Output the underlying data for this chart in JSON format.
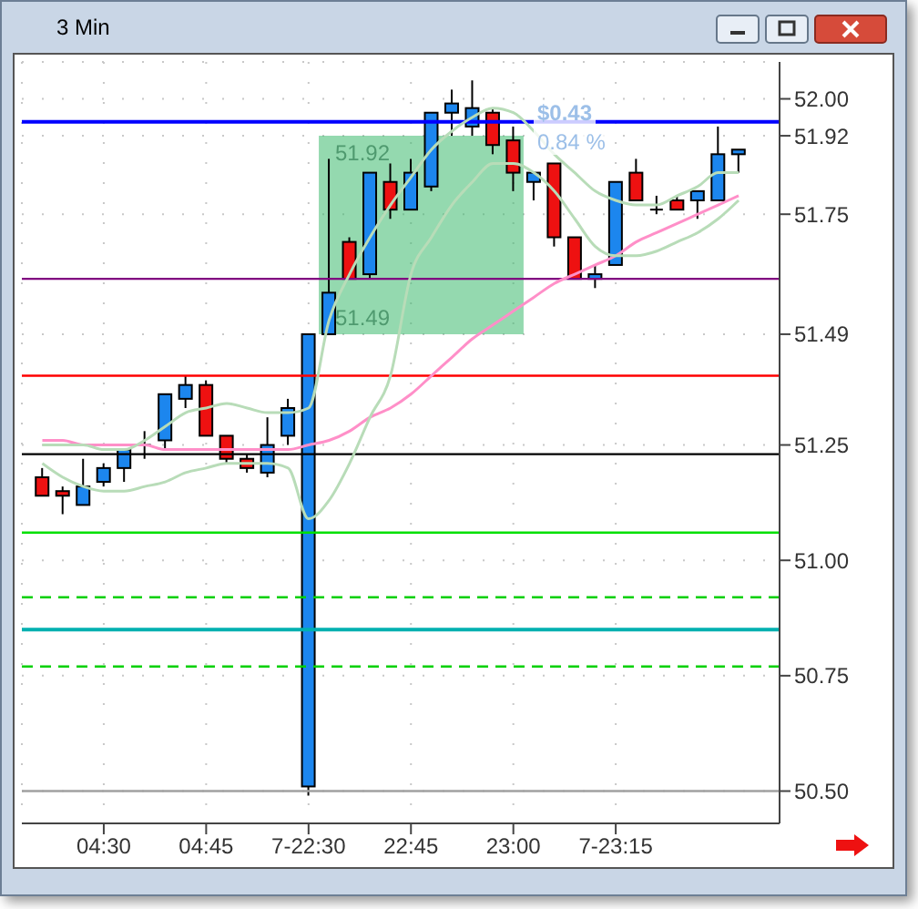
{
  "chart_data": {
    "type": "candlestick",
    "title": "3 Min",
    "categories": [
      null,
      null,
      null,
      "04:30",
      null,
      null,
      null,
      null,
      "04:45",
      null,
      null,
      null,
      null,
      "7-22:30",
      null,
      null,
      null,
      null,
      "22:45",
      null,
      null,
      null,
      null,
      "23:00",
      null,
      null,
      null,
      null,
      "7-23:15",
      null,
      null,
      null,
      null,
      null,
      null
    ],
    "ohlc": [
      [
        51.18,
        51.2,
        51.14,
        51.14
      ],
      [
        51.15,
        51.16,
        51.1,
        51.14
      ],
      [
        51.12,
        51.22,
        51.12,
        51.16
      ],
      [
        51.17,
        51.21,
        51.16,
        51.2
      ],
      [
        51.2,
        51.24,
        51.17,
        51.24
      ],
      [
        51.25,
        51.28,
        51.22,
        51.25
      ],
      [
        51.26,
        51.36,
        51.24,
        51.36
      ],
      [
        51.35,
        51.4,
        51.33,
        51.38
      ],
      [
        51.38,
        51.39,
        51.27,
        51.27
      ],
      [
        51.27,
        51.27,
        51.21,
        51.22
      ],
      [
        51.22,
        51.23,
        51.19,
        51.2
      ],
      [
        51.19,
        51.31,
        51.18,
        51.25
      ],
      [
        51.27,
        51.35,
        51.25,
        51.33
      ],
      [
        50.51,
        51.49,
        50.49,
        51.49
      ],
      [
        51.49,
        51.87,
        51.49,
        51.58
      ],
      [
        51.69,
        51.7,
        51.61,
        51.61
      ],
      [
        51.62,
        51.84,
        51.61,
        51.84
      ],
      [
        51.82,
        51.86,
        51.74,
        51.76
      ],
      [
        51.76,
        51.87,
        51.76,
        51.84
      ],
      [
        51.81,
        51.97,
        51.8,
        51.97
      ],
      [
        51.97,
        52.02,
        51.92,
        51.99
      ],
      [
        51.94,
        52.04,
        51.92,
        51.98
      ],
      [
        51.97,
        51.98,
        51.88,
        51.9
      ],
      [
        51.91,
        51.94,
        51.8,
        51.84
      ],
      [
        51.82,
        51.84,
        51.78,
        51.84
      ],
      [
        51.86,
        51.86,
        51.68,
        51.7
      ],
      [
        51.7,
        51.7,
        51.61,
        51.61
      ],
      [
        51.61,
        51.64,
        51.59,
        51.62
      ],
      [
        51.64,
        51.82,
        51.64,
        51.82
      ],
      [
        51.84,
        51.87,
        51.78,
        51.78
      ],
      [
        51.76,
        51.79,
        51.75,
        51.76
      ],
      [
        51.78,
        51.79,
        51.76,
        51.76
      ],
      [
        51.78,
        51.8,
        51.74,
        51.8
      ],
      [
        51.78,
        51.94,
        51.78,
        51.88
      ],
      [
        51.88,
        51.89,
        51.84,
        51.89
      ]
    ],
    "colors": [
      "#ee1111",
      "#ee1111",
      "#1c86ee",
      "#1c86ee",
      "#1c86ee",
      "#000000",
      "#1c86ee",
      "#1c86ee",
      "#ee1111",
      "#ee1111",
      "#ee1111",
      "#1c86ee",
      "#1c86ee",
      "#1c86ee",
      "#1c86ee",
      "#ee1111",
      "#1c86ee",
      "#ee1111",
      "#1c86ee",
      "#1c86ee",
      "#1c86ee",
      "#1c86ee",
      "#ee1111",
      "#ee1111",
      "#1c86ee",
      "#ee1111",
      "#ee1111",
      "#1c86ee",
      "#1c86ee",
      "#ee1111",
      "#000000",
      "#ee1111",
      "#1c86ee",
      "#1c86ee",
      "#1c86ee"
    ],
    "series": [
      {
        "type": "line",
        "color": "#ff8fc8",
        "values": [
          51.26,
          51.26,
          51.25,
          51.25,
          51.25,
          51.25,
          51.24,
          51.24,
          51.24,
          51.24,
          51.24,
          51.24,
          51.24,
          51.25,
          51.26,
          51.28,
          51.31,
          51.33,
          51.36,
          51.4,
          51.44,
          51.48,
          51.51,
          51.54,
          51.57,
          51.6,
          51.62,
          51.64,
          51.66,
          51.69,
          51.71,
          51.73,
          51.75,
          51.77,
          51.79
        ]
      },
      {
        "type": "line",
        "color": "#b8dcb8",
        "values": [
          51.25,
          51.25,
          51.25,
          51.24,
          51.24,
          51.26,
          51.29,
          51.32,
          51.33,
          51.34,
          51.33,
          51.32,
          51.32,
          51.33,
          51.52,
          51.62,
          51.7,
          51.77,
          51.83,
          51.89,
          51.93,
          51.96,
          51.98,
          51.97,
          51.93,
          51.88,
          51.84,
          51.8,
          51.78,
          51.77,
          51.77,
          51.79,
          51.81,
          51.84,
          51.84
        ]
      },
      {
        "type": "line",
        "color": "#b8dcb8",
        "values": [
          51.21,
          51.18,
          51.16,
          51.15,
          51.15,
          51.16,
          51.17,
          51.19,
          51.2,
          51.21,
          51.21,
          51.21,
          51.2,
          51.09,
          51.13,
          51.21,
          51.31,
          51.4,
          51.62,
          51.7,
          51.77,
          51.82,
          51.86,
          51.86,
          51.84,
          51.8,
          51.74,
          51.68,
          51.66,
          51.66,
          51.67,
          51.69,
          51.71,
          51.74,
          51.78
        ]
      }
    ],
    "ylim": [
      50.43,
      52.08
    ],
    "yticks": [
      {
        "value": 50.5,
        "label": "50.50"
      },
      50.75,
      {
        "value": 51,
        "label": "51.00"
      },
      51.25,
      51.49,
      51.75,
      51.92,
      {
        "value": 52,
        "label": "52.00"
      }
    ],
    "ref_lines": [
      {
        "axis": "y",
        "value": 51.95,
        "color": "#0000ff",
        "line_style": "solid"
      },
      {
        "axis": "y",
        "value": 51.61,
        "color": "#800080",
        "line_style": "solid"
      },
      {
        "axis": "y",
        "value": 51.4,
        "color": "#ff0000",
        "line_style": "solid"
      },
      {
        "axis": "y",
        "value": 51.23,
        "color": "#000000",
        "line_style": "solid"
      },
      {
        "axis": "y",
        "value": 51.06,
        "color": "#00e000",
        "line_style": "solid"
      },
      {
        "axis": "y",
        "value": 50.92,
        "color": "#00d000",
        "line_style": "dashed"
      },
      {
        "axis": "y",
        "value": 50.85,
        "color": "#00b0b0",
        "line_style": "solid"
      },
      {
        "axis": "y",
        "value": 50.77,
        "color": "#00d000",
        "line_style": "dashed"
      },
      {
        "axis": "y",
        "value": 50.5,
        "color": "#a0a0a0",
        "line_style": "solid"
      }
    ],
    "bands": [
      {
        "axis": "y",
        "from": 51.49,
        "to": 51.92,
        "color": "#3cb96e"
      }
    ],
    "annotations": [
      {
        "text": "51.92",
        "y": 51.92
      },
      {
        "text": "51.49",
        "y": 51.49
      },
      "$0.43",
      "0.84 %"
    ],
    "grid": true,
    "legend": false
  }
}
